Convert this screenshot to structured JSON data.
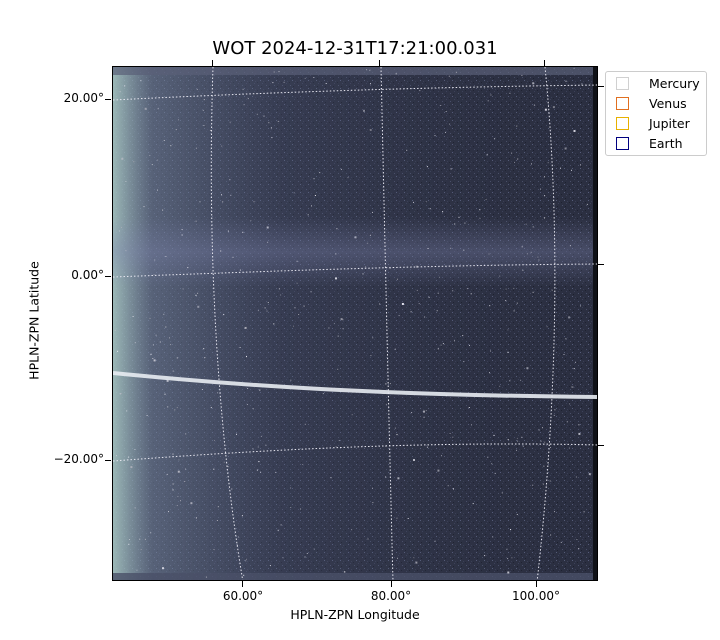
{
  "title": "WOT 2024-12-31T17:21:00.031",
  "axes": {
    "xlabel": "HPLN-ZPN Longitude",
    "ylabel": "HPLN-ZPN Latitude",
    "xticks": [
      "60.00°",
      "80.00°",
      "100.00°"
    ],
    "yticks": [
      "20.00°",
      "0.00°",
      "−20.00°"
    ]
  },
  "legend": {
    "items": [
      {
        "label": "Mercury",
        "color": "#d0d0d0"
      },
      {
        "label": "Venus",
        "color": "#e07020"
      },
      {
        "label": "Jupiter",
        "color": "#e8b000"
      },
      {
        "label": "Earth",
        "color": "#000080"
      }
    ]
  },
  "colors": {
    "sky_dark": "#2a2e40",
    "sky_glow": "#9fb8c0",
    "grid": "#e6e6f0",
    "arc": "#e8ecf2"
  }
}
